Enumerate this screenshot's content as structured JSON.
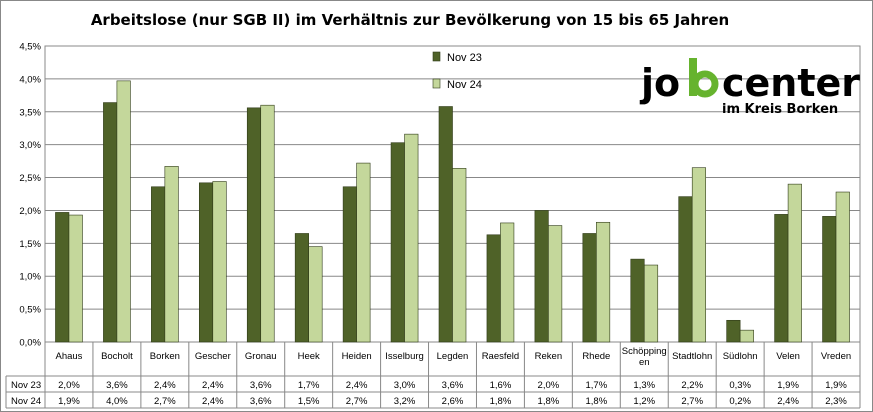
{
  "chart_data": {
    "type": "bar",
    "title": "Arbeitslose (nur SGB II) im Verhältnis zur Bevölkerung von 15 bis 65 Jahren",
    "categories": [
      "Ahaus",
      "Bocholt",
      "Borken",
      "Gescher",
      "Gronau",
      "Heek",
      "Heiden",
      "Isselburg",
      "Legden",
      "Raesfeld",
      "Reken",
      "Rhede",
      "Schöppingen",
      "Stadtlohn",
      "Südlohn",
      "Velen",
      "Vreden"
    ],
    "category_display": [
      [
        "Ahaus"
      ],
      [
        "Bocholt"
      ],
      [
        "Borken"
      ],
      [
        "Gescher"
      ],
      [
        "Gronau"
      ],
      [
        "Heek"
      ],
      [
        "Heiden"
      ],
      [
        "Isselburg"
      ],
      [
        "Legden"
      ],
      [
        "Raesfeld"
      ],
      [
        "Reken"
      ],
      [
        "Rhede"
      ],
      [
        "Schöpping",
        "en"
      ],
      [
        "Stadtlohn"
      ],
      [
        "Südlohn"
      ],
      [
        "Velen"
      ],
      [
        "Vreden"
      ]
    ],
    "series": [
      {
        "name": "Nov 23",
        "color": "#4f6228",
        "values": [
          1.97,
          3.64,
          2.36,
          2.42,
          3.56,
          1.65,
          2.36,
          3.03,
          3.58,
          1.63,
          2.0,
          1.65,
          1.26,
          2.21,
          0.33,
          1.94,
          1.91
        ],
        "labels": [
          "2,0%",
          "3,6%",
          "2,4%",
          "2,4%",
          "3,6%",
          "1,7%",
          "2,4%",
          "3,0%",
          "3,6%",
          "1,6%",
          "2,0%",
          "1,7%",
          "1,3%",
          "2,2%",
          "0,3%",
          "1,9%",
          "1,9%"
        ]
      },
      {
        "name": "Nov 24",
        "color": "#c4d79b",
        "values": [
          1.93,
          3.97,
          2.67,
          2.44,
          3.6,
          1.45,
          2.72,
          3.16,
          2.64,
          1.81,
          1.77,
          1.82,
          1.17,
          2.65,
          0.18,
          2.4,
          2.28
        ],
        "labels": [
          "1,9%",
          "4,0%",
          "2,7%",
          "2,4%",
          "3,6%",
          "1,5%",
          "2,7%",
          "3,2%",
          "2,6%",
          "1,8%",
          "1,8%",
          "1,8%",
          "1,2%",
          "2,7%",
          "0,2%",
          "2,4%",
          "2,3%"
        ]
      }
    ],
    "ylim": [
      0,
      4.5
    ],
    "y_ticks": [
      {
        "value": 0,
        "label": "0,0%"
      },
      {
        "value": 0.5,
        "label": "0,5%"
      },
      {
        "value": 1.0,
        "label": "1,0%"
      },
      {
        "value": 1.5,
        "label": "1,5%"
      },
      {
        "value": 2.0,
        "label": "2,0%"
      },
      {
        "value": 2.5,
        "label": "2,5%"
      },
      {
        "value": 3.0,
        "label": "3,0%"
      },
      {
        "value": 3.5,
        "label": "3,5%"
      },
      {
        "value": 4.0,
        "label": "4,0%"
      },
      {
        "value": 4.5,
        "label": "4,5%"
      }
    ],
    "grid": true,
    "legend_position": "top-center",
    "data_table": true
  },
  "logo": {
    "text": "jobcenter",
    "subtitle": "im Kreis Borken",
    "accent_color": "#66b32e"
  }
}
